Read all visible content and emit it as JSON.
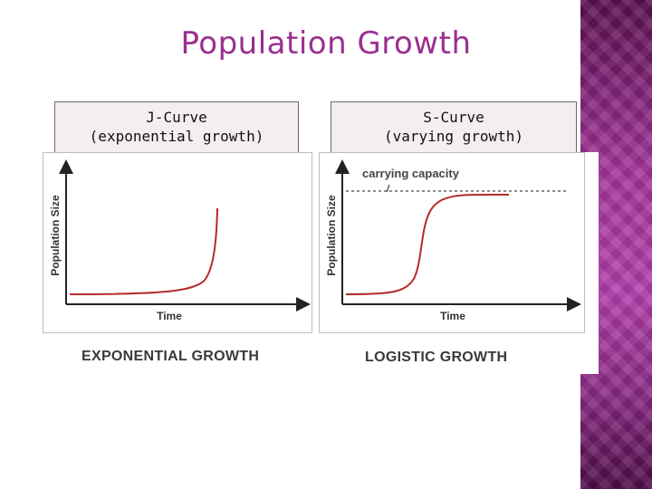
{
  "slide": {
    "title": "Population Growth"
  },
  "left_panel": {
    "caption_line1": "J-Curve",
    "caption_line2": "(exponential growth)",
    "y_label": "Population Size",
    "x_label": "Time",
    "bottom_label": "EXPONENTIAL GROWTH"
  },
  "right_panel": {
    "caption_line1": "S-Curve",
    "caption_line2": "(varying growth)",
    "y_label": "Population Size",
    "x_label": "Time",
    "carrying_label": "carrying capacity",
    "bottom_label": "LOGISTIC GROWTH"
  },
  "colors": {
    "title": "#9b2f8f",
    "curve": "#b52a2a",
    "axis": "#222222",
    "caption_bg": "#f4eef3"
  }
}
